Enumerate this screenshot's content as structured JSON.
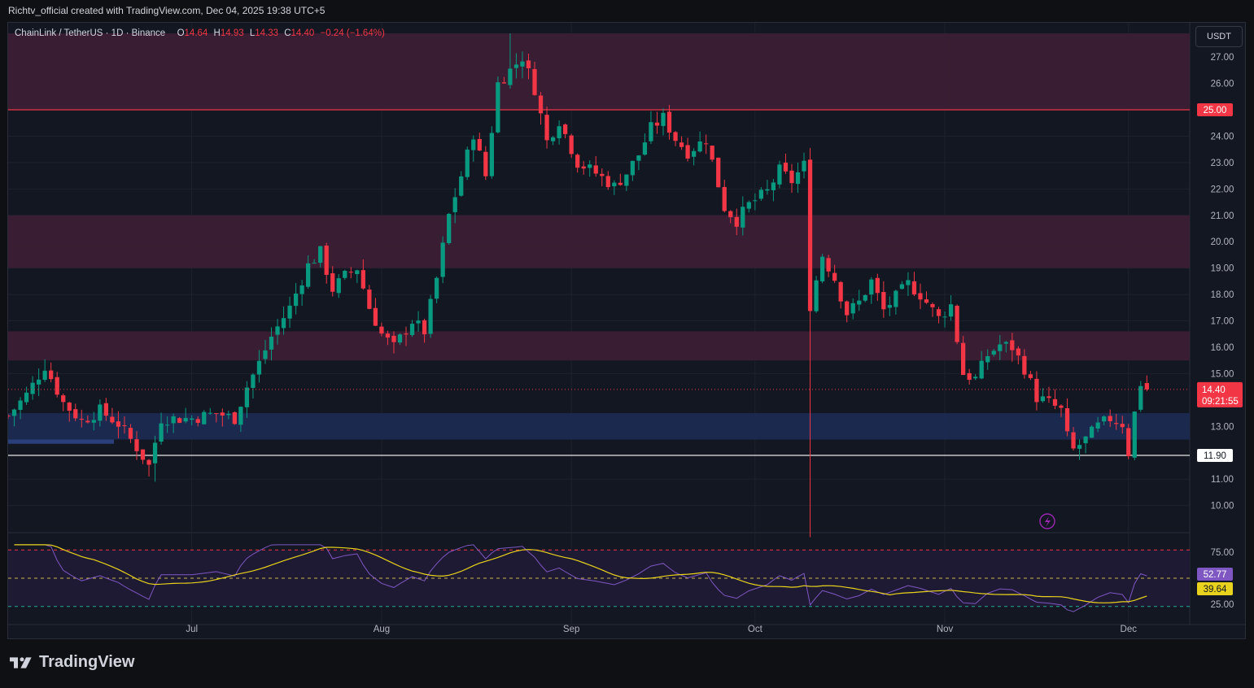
{
  "header": {
    "caption": "Richtv_official created with TradingView.com, Dec 04, 2025 19:38 UTC+5"
  },
  "legend": {
    "symbol": "ChainLink / TetherUS · 1D · Binance",
    "o_label": "O",
    "o_value": "14.64",
    "h_label": "H",
    "h_value": "14.93",
    "l_label": "L",
    "l_value": "14.33",
    "c_label": "C",
    "c_value": "14.40",
    "change": "−0.24 (−1.64%)"
  },
  "toolbar": {
    "currency": "USDT"
  },
  "branding": {
    "name": "TradingView"
  },
  "colors": {
    "up": "#089981",
    "down": "#f23645",
    "zone_purple": "#3a1d35",
    "zone_blue": "#1b2a52",
    "resistance_line": "#f23645",
    "support_line": "#ffffff",
    "rsi_line": "#7e57c2",
    "rsi_ma": "#e8d21d"
  },
  "chart_data": {
    "type": "candlestick",
    "title": "ChainLink / TetherUS · 1D · Binance",
    "y_axis": {
      "min": 9.0,
      "max": 28.3,
      "ticks": [
        "10.00",
        "11.00",
        "13.00",
        "15.00",
        "16.00",
        "17.00",
        "18.00",
        "19.00",
        "20.00",
        "21.00",
        "22.00",
        "23.00",
        "24.00",
        "26.00",
        "27.00"
      ]
    },
    "x_axis": {
      "labels": [
        {
          "label": "Jul",
          "date": "2025-07-01"
        },
        {
          "label": "Aug",
          "date": "2025-08-01"
        },
        {
          "label": "Sep",
          "date": "2025-09-01"
        },
        {
          "label": "Oct",
          "date": "2025-10-01"
        },
        {
          "label": "Nov",
          "date": "2025-11-01"
        },
        {
          "label": "Dec",
          "date": "2025-12-01"
        }
      ]
    },
    "start_date": "2025-06-01",
    "end_date": "2025-12-04",
    "close_path": [
      [
        "2025-06-01",
        13.4
      ],
      [
        "2025-06-04",
        14.2
      ],
      [
        "2025-06-07",
        15.3
      ],
      [
        "2025-06-10",
        13.9
      ],
      [
        "2025-06-13",
        13.2
      ],
      [
        "2025-06-16",
        13.6
      ],
      [
        "2025-06-19",
        13.1
      ],
      [
        "2025-06-22",
        12.2
      ],
      [
        "2025-06-24",
        11.5
      ],
      [
        "2025-06-26",
        13.3
      ],
      [
        "2025-07-01",
        13.3
      ],
      [
        "2025-07-05",
        13.5
      ],
      [
        "2025-07-08",
        13.3
      ],
      [
        "2025-07-10",
        14.5
      ],
      [
        "2025-07-12",
        15.4
      ],
      [
        "2025-07-14",
        16.4
      ],
      [
        "2025-07-17",
        17.5
      ],
      [
        "2025-07-20",
        19.1
      ],
      [
        "2025-07-22",
        19.6
      ],
      [
        "2025-07-24",
        18.2
      ],
      [
        "2025-07-26",
        18.7
      ],
      [
        "2025-07-28",
        19.0
      ],
      [
        "2025-07-30",
        17.5
      ],
      [
        "2025-08-01",
        16.5
      ],
      [
        "2025-08-03",
        16.0
      ],
      [
        "2025-08-06",
        17.0
      ],
      [
        "2025-08-08",
        16.6
      ],
      [
        "2025-08-10",
        18.6
      ],
      [
        "2025-08-12",
        21.0
      ],
      [
        "2025-08-14",
        22.5
      ],
      [
        "2025-08-16",
        24.1
      ],
      [
        "2025-08-18",
        22.5
      ],
      [
        "2025-08-20",
        26.0
      ],
      [
        "2025-08-22",
        26.5
      ],
      [
        "2025-08-24",
        27.0
      ],
      [
        "2025-08-26",
        25.8
      ],
      [
        "2025-08-28",
        23.8
      ],
      [
        "2025-08-30",
        24.6
      ],
      [
        "2025-09-02",
        23.0
      ],
      [
        "2025-09-05",
        22.6
      ],
      [
        "2025-09-08",
        22.1
      ],
      [
        "2025-09-10",
        22.6
      ],
      [
        "2025-09-12",
        23.3
      ],
      [
        "2025-09-14",
        24.3
      ],
      [
        "2025-09-16",
        24.7
      ],
      [
        "2025-09-18",
        23.9
      ],
      [
        "2025-09-20",
        23.4
      ],
      [
        "2025-09-23",
        23.9
      ],
      [
        "2025-09-26",
        21.3
      ],
      [
        "2025-09-28",
        20.8
      ],
      [
        "2025-09-30",
        21.4
      ],
      [
        "2025-10-03",
        21.9
      ],
      [
        "2025-10-05",
        22.7
      ],
      [
        "2025-10-07",
        22.3
      ],
      [
        "2025-10-09",
        22.9
      ],
      [
        "2025-10-10",
        17.6
      ],
      [
        "2025-10-12",
        19.5
      ],
      [
        "2025-10-14",
        18.6
      ],
      [
        "2025-10-16",
        17.3
      ],
      [
        "2025-10-18",
        17.7
      ],
      [
        "2025-10-20",
        18.5
      ],
      [
        "2025-10-22",
        17.4
      ],
      [
        "2025-10-24",
        17.9
      ],
      [
        "2025-10-26",
        18.4
      ],
      [
        "2025-10-28",
        18.0
      ],
      [
        "2025-10-31",
        17.1
      ],
      [
        "2025-11-02",
        17.6
      ],
      [
        "2025-11-04",
        15.0
      ],
      [
        "2025-11-06",
        14.8
      ],
      [
        "2025-11-08",
        15.7
      ],
      [
        "2025-11-10",
        16.1
      ],
      [
        "2025-11-12",
        16.0
      ],
      [
        "2025-11-14",
        15.2
      ],
      [
        "2025-11-16",
        14.1
      ],
      [
        "2025-11-18",
        13.9
      ],
      [
        "2025-11-20",
        13.6
      ],
      [
        "2025-11-21",
        12.6
      ],
      [
        "2025-11-22",
        12.1
      ],
      [
        "2025-11-24",
        12.5
      ],
      [
        "2025-11-26",
        13.0
      ],
      [
        "2025-11-28",
        13.3
      ],
      [
        "2025-11-30",
        13.1
      ],
      [
        "2025-12-01",
        12.0
      ],
      [
        "2025-12-02",
        13.5
      ],
      [
        "2025-12-03",
        14.64
      ],
      [
        "2025-12-04",
        14.4
      ]
    ],
    "last_candle": {
      "open": 14.64,
      "high": 14.93,
      "low": 14.33,
      "close": 14.4
    },
    "spikes": [
      {
        "date": "2025-10-10",
        "low": 8.8
      },
      {
        "date": "2025-06-25",
        "low": 10.9
      },
      {
        "date": "2025-08-22",
        "high": 27.9
      }
    ],
    "zones": [
      {
        "name": "upper supply",
        "from": 25.0,
        "to": 27.9,
        "color": "purple"
      },
      {
        "name": "mid supply",
        "from": 19.0,
        "to": 21.0,
        "color": "purple"
      },
      {
        "name": "lower supply",
        "from": 15.5,
        "to": 16.6,
        "color": "purple"
      },
      {
        "name": "demand",
        "from": 12.5,
        "to": 13.5,
        "color": "blue"
      }
    ],
    "levels": [
      {
        "value": 25.0,
        "label": "25.00",
        "color": "red"
      },
      {
        "value": 11.9,
        "label": "11.90",
        "color": "white"
      }
    ],
    "current_price": {
      "value": 14.4,
      "label": "14.40",
      "countdown": "09:21:55"
    },
    "rsi": {
      "ylim": [
        15,
        85
      ],
      "ticks": [
        "75.00",
        "25.00"
      ],
      "upper_band": 77,
      "mid_band": 50,
      "lower_band": 23,
      "value": "52.77",
      "ma_value": "39.64"
    }
  }
}
